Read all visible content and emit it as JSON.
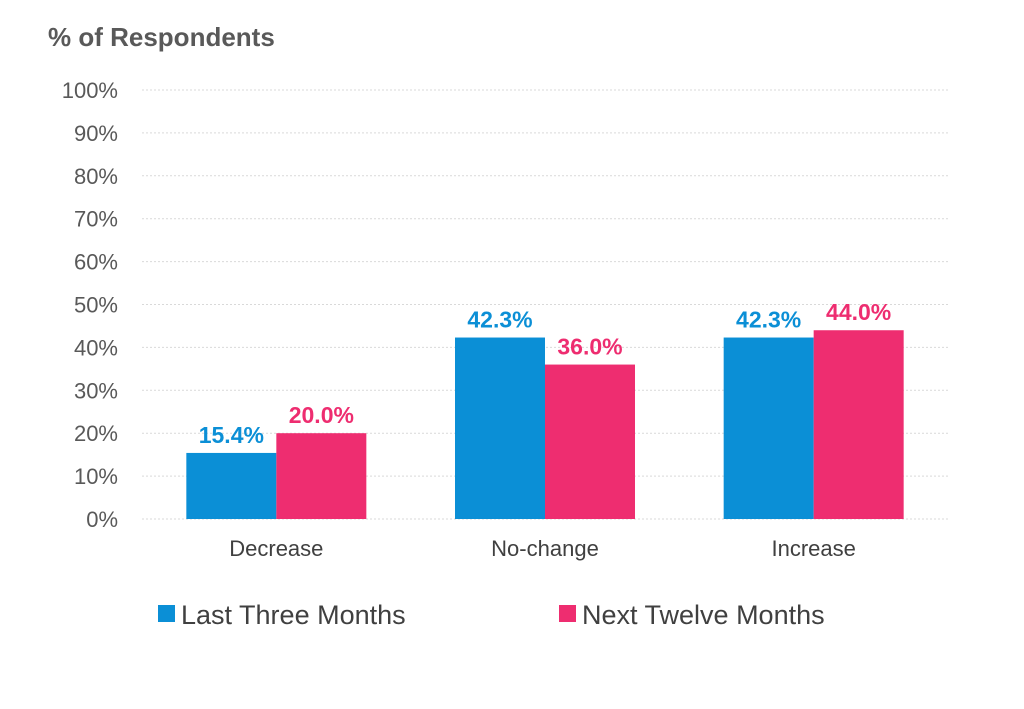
{
  "chart_data": {
    "type": "bar",
    "ylabel": "% of Respondents",
    "xlabel": "",
    "ylim": [
      0,
      100
    ],
    "yticks": [
      "0%",
      "10%",
      "20%",
      "30%",
      "40%",
      "50%",
      "60%",
      "70%",
      "80%",
      "90%",
      "100%"
    ],
    "categories": [
      "Decrease",
      "No-change",
      "Increase"
    ],
    "series": [
      {
        "name": "Last Three Months",
        "color": "#0b8fd6",
        "values": [
          15.4,
          42.3,
          42.3
        ],
        "labels": [
          "15.4%",
          "42.3%",
          "42.3%"
        ]
      },
      {
        "name": "Next Twelve Months",
        "color": "#ee2d70",
        "values": [
          20.0,
          36.0,
          44.0
        ],
        "labels": [
          "20.0%",
          "36.0%",
          "44.0%"
        ]
      }
    ],
    "grid": true,
    "legend_position": "bottom"
  }
}
